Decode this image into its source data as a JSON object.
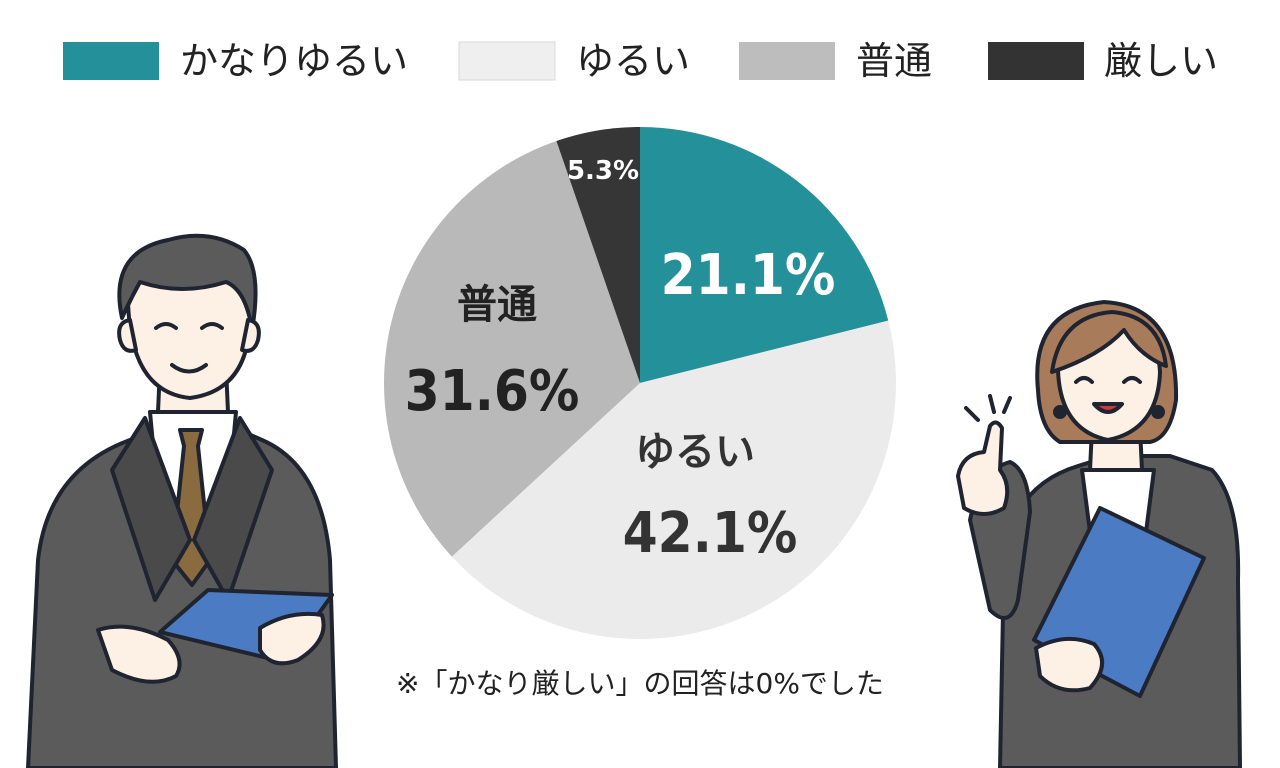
{
  "chart_data": {
    "type": "pie",
    "categories": [
      "かなりゆるい",
      "ゆるい",
      "普通",
      "厳しい"
    ],
    "values": [
      21.1,
      42.1,
      31.6,
      5.3
    ],
    "value_labels": [
      "21.1%",
      "42.1%",
      "31.6%",
      "5.3%"
    ],
    "slice_labels": [
      "",
      "ゆるい",
      "普通",
      ""
    ],
    "colors": [
      "#24919a",
      "#ebebeb",
      "#b9b9b9",
      "#363636"
    ],
    "label_colors": [
      "#ffffff",
      "#333333",
      "#222222",
      "#ffffff"
    ],
    "start_angle_deg": 0,
    "direction": "clockwise",
    "legend_position": "top"
  },
  "legend": {
    "items": [
      {
        "label": "かなりゆるい",
        "color": "#24919a"
      },
      {
        "label": "ゆるい",
        "color": "#efefef"
      },
      {
        "label": "普通",
        "color": "#bdbdbd"
      },
      {
        "label": "厳しい",
        "color": "#333333"
      }
    ]
  },
  "note": "※「かなり厳しい」の回答は0%でした",
  "illustrations": {
    "left": "businessman-with-tablet-icon",
    "right": "businesswoman-with-folder-icon"
  }
}
